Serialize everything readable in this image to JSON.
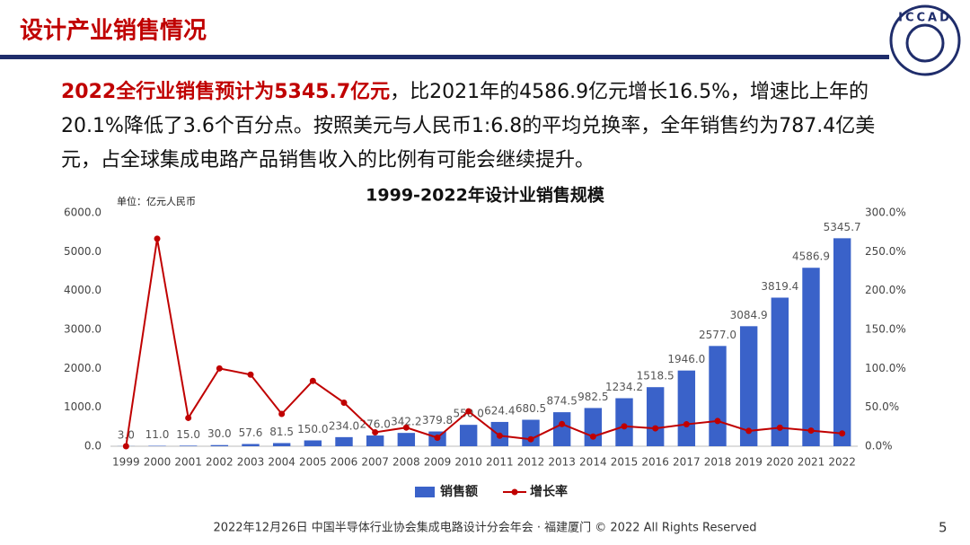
{
  "header": {
    "title": "设计产业销售情况",
    "logo": "ICCAD"
  },
  "paragraph": {
    "highlight": "2022全行业销售预计为5345.7亿元",
    "text": "，比2021年的4586.9亿元增长16.5%，增速比上年的20.1%降低了3.6个百分点。按照美元与人民币1:6.8的平均兑换率，全年销售约为787.4亿美元，占全球集成电路产品销售收入的比例有可能会继续提升。"
  },
  "chart_data": {
    "type": "bar",
    "title": "1999-2022年设计业销售规模",
    "unit_label": "单位：亿元人民币",
    "categories": [
      "1999",
      "2000",
      "2001",
      "2002",
      "2003",
      "2004",
      "2005",
      "2006",
      "2007",
      "2008",
      "2009",
      "2010",
      "2011",
      "2012",
      "2013",
      "2014",
      "2015",
      "2016",
      "2017",
      "2018",
      "2019",
      "2020",
      "2021",
      "2022"
    ],
    "series": [
      {
        "name": "销售额",
        "color": "#3a62c9",
        "values": [
          3.0,
          11.0,
          15.0,
          30.0,
          57.6,
          81.5,
          150.0,
          234.0,
          276.0,
          342.2,
          379.8,
          550.0,
          624.4,
          680.5,
          874.5,
          982.5,
          1234.2,
          1518.5,
          1946.0,
          2577.0,
          3084.9,
          3819.4,
          4586.9,
          5345.7
        ],
        "value_labels": [
          "3.0",
          "11.0",
          "15.0",
          "30.0",
          "57.6",
          "81.5",
          "150.0",
          "234.0",
          "276.0",
          "342.2",
          "379.8",
          "550.0",
          "624.4",
          "680.5",
          "874.5",
          "982.5",
          "1234.2",
          "1518.5",
          "1946.0",
          "2577.0",
          "3084.9",
          "3819.4",
          "4586.9",
          "5345.7"
        ]
      },
      {
        "name": "增长率",
        "type": "line",
        "axis": "y2",
        "color": "#c00000",
        "values": [
          0,
          266.7,
          36.4,
          100,
          92,
          41.5,
          84,
          56,
          17.9,
          24,
          11,
          44.8,
          13.5,
          9,
          28.5,
          12.4,
          25.6,
          23,
          28.2,
          32.4,
          19.7,
          23.8,
          20.1,
          16.5
        ]
      }
    ],
    "ylim": [
      0,
      6000
    ],
    "yticks": [
      {
        "value": 0,
        "label": "0.0"
      },
      {
        "value": 1000,
        "label": "1000.0"
      },
      {
        "value": 2000,
        "label": "2000.0"
      },
      {
        "value": 3000,
        "label": "3000.0"
      },
      {
        "value": 4000,
        "label": "4000.0"
      },
      {
        "value": 5000,
        "label": "5000.0"
      },
      {
        "value": 6000,
        "label": "6000.0"
      }
    ],
    "y2lim": [
      0,
      300
    ],
    "y2ticks": [
      {
        "value": 0,
        "label": "0.0%"
      },
      {
        "value": 50,
        "label": "50.0%"
      },
      {
        "value": 100,
        "label": "100.0%"
      },
      {
        "value": 150,
        "label": "150.0%"
      },
      {
        "value": 200,
        "label": "200.0%"
      },
      {
        "value": 250,
        "label": "250.0%"
      },
      {
        "value": 300,
        "label": "300.0%"
      }
    ],
    "grid": false,
    "legend": "bottom"
  },
  "footer": {
    "text": "2022年12月26日 中国半导体行业协会集成电路设计分会年会 · 福建厦门 © 2022 All Rights Reserved",
    "page": "5"
  }
}
